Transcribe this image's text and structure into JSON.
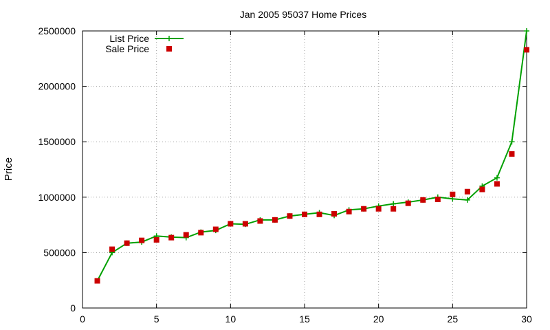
{
  "chart_data": {
    "type": "line",
    "title": "Jan 2005 95037 Home Prices",
    "xlabel": "",
    "ylabel": "Price",
    "xlim": [
      0,
      30
    ],
    "ylim": [
      0,
      2500000
    ],
    "xticks": [
      0,
      5,
      10,
      15,
      20,
      25,
      30
    ],
    "yticks": [
      0,
      500000,
      1000000,
      1500000,
      2000000,
      2500000
    ],
    "grid": true,
    "legend_position": "top-left",
    "series": [
      {
        "name": "List Price",
        "style": "line-with-plus-markers",
        "color": "#00a000",
        "x": [
          1,
          2,
          3,
          4,
          5,
          6,
          7,
          8,
          9,
          10,
          11,
          12,
          13,
          14,
          15,
          16,
          17,
          18,
          19,
          20,
          21,
          22,
          23,
          24,
          25,
          26,
          27,
          28,
          29,
          30
        ],
        "y": [
          245000,
          500000,
          585000,
          595000,
          650000,
          640000,
          635000,
          685000,
          700000,
          760000,
          755000,
          795000,
          795000,
          830000,
          845000,
          860000,
          835000,
          885000,
          895000,
          920000,
          940000,
          955000,
          975000,
          1000000,
          985000,
          975000,
          1100000,
          1175000,
          1500000,
          2500000
        ]
      },
      {
        "name": "Sale Price",
        "style": "square-markers",
        "color": "#cc0000",
        "x": [
          1,
          2,
          3,
          4,
          5,
          6,
          7,
          8,
          9,
          10,
          11,
          12,
          13,
          14,
          15,
          16,
          17,
          18,
          19,
          20,
          21,
          22,
          23,
          24,
          25,
          26,
          27,
          28,
          29,
          30
        ],
        "y": [
          245000,
          530000,
          585000,
          610000,
          615000,
          635000,
          660000,
          680000,
          710000,
          760000,
          760000,
          785000,
          795000,
          830000,
          845000,
          845000,
          850000,
          870000,
          895000,
          895000,
          895000,
          945000,
          975000,
          980000,
          1025000,
          1050000,
          1070000,
          1120000,
          1390000,
          2330000
        ]
      }
    ]
  }
}
